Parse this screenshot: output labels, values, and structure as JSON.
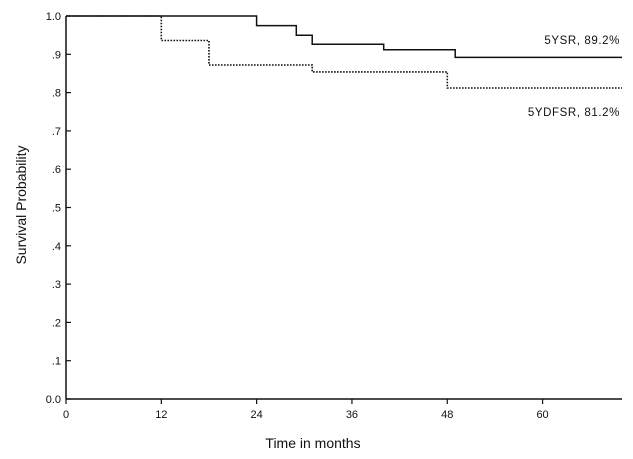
{
  "chart_data": {
    "type": "line",
    "xlabel": "Time in months",
    "ylabel": "Survival Probability",
    "xlim": [
      0,
      70
    ],
    "ylim": [
      0,
      1
    ],
    "x_ticks": [
      0,
      12,
      24,
      36,
      48,
      60
    ],
    "x_tick_labels": [
      "0",
      "12",
      "24",
      "36",
      "48",
      "60"
    ],
    "y_ticks": [
      0,
      0.1,
      0.2,
      0.3,
      0.4,
      0.5,
      0.6,
      0.7,
      0.8,
      0.9,
      1.0
    ],
    "y_tick_labels": [
      "0.0",
      ".1",
      ".2",
      ".3",
      ".4",
      ".5",
      ".6",
      ".7",
      ".8",
      ".9",
      "1.0"
    ],
    "grid": false,
    "legend": "none",
    "series": [
      {
        "name": "5YSR, 89.2%",
        "style": "solid",
        "color": "#111111",
        "x": [
          0,
          24,
          24,
          29,
          29,
          31,
          31,
          40,
          40,
          49,
          49,
          70
        ],
        "y": [
          1.0,
          1.0,
          0.975,
          0.975,
          0.95,
          0.95,
          0.926,
          0.926,
          0.912,
          0.912,
          0.892,
          0.892
        ]
      },
      {
        "name": "5YDFSR, 81.2%",
        "style": "dotted",
        "color": "#111111",
        "x": [
          0,
          12,
          12,
          18,
          18,
          31,
          31,
          48,
          48,
          70
        ],
        "y": [
          1.0,
          1.0,
          0.936,
          0.936,
          0.872,
          0.872,
          0.854,
          0.854,
          0.812,
          0.812
        ]
      }
    ]
  }
}
